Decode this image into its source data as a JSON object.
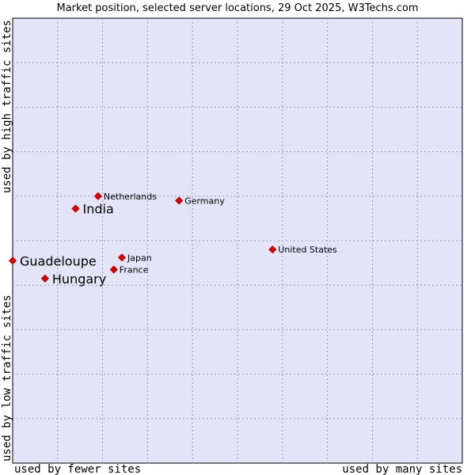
{
  "chart_data": {
    "type": "scatter",
    "title": "Market position, selected server locations, 29 Oct 2025, W3Techs.com",
    "xlabel_left": "used by fewer sites",
    "xlabel_right": "used by many sites",
    "ylabel_bottom": "used by low traffic sites",
    "ylabel_top": "used by high traffic sites",
    "xlim": [
      0,
      100
    ],
    "ylim": [
      0,
      100
    ],
    "grid": true,
    "x_grid_count": 10,
    "y_grid_count": 10,
    "colors": {
      "plot_background": "#e4e4f8",
      "point": "#e00000",
      "frame": "#000000"
    },
    "points": [
      {
        "name": "Netherlands",
        "x": 19.0,
        "y": 60.0,
        "emphasis": false
      },
      {
        "name": "Germany",
        "x": 37.0,
        "y": 59.0,
        "emphasis": false
      },
      {
        "name": "India",
        "x": 14.0,
        "y": 57.2,
        "emphasis": true
      },
      {
        "name": "United States",
        "x": 57.8,
        "y": 48.0,
        "emphasis": false
      },
      {
        "name": "Japan",
        "x": 24.3,
        "y": 46.2,
        "emphasis": false
      },
      {
        "name": "Guadeloupe",
        "x": 0.0,
        "y": 45.5,
        "emphasis": true
      },
      {
        "name": "France",
        "x": 22.5,
        "y": 43.5,
        "emphasis": false
      },
      {
        "name": "Hungary",
        "x": 7.2,
        "y": 41.5,
        "emphasis": true
      }
    ]
  }
}
